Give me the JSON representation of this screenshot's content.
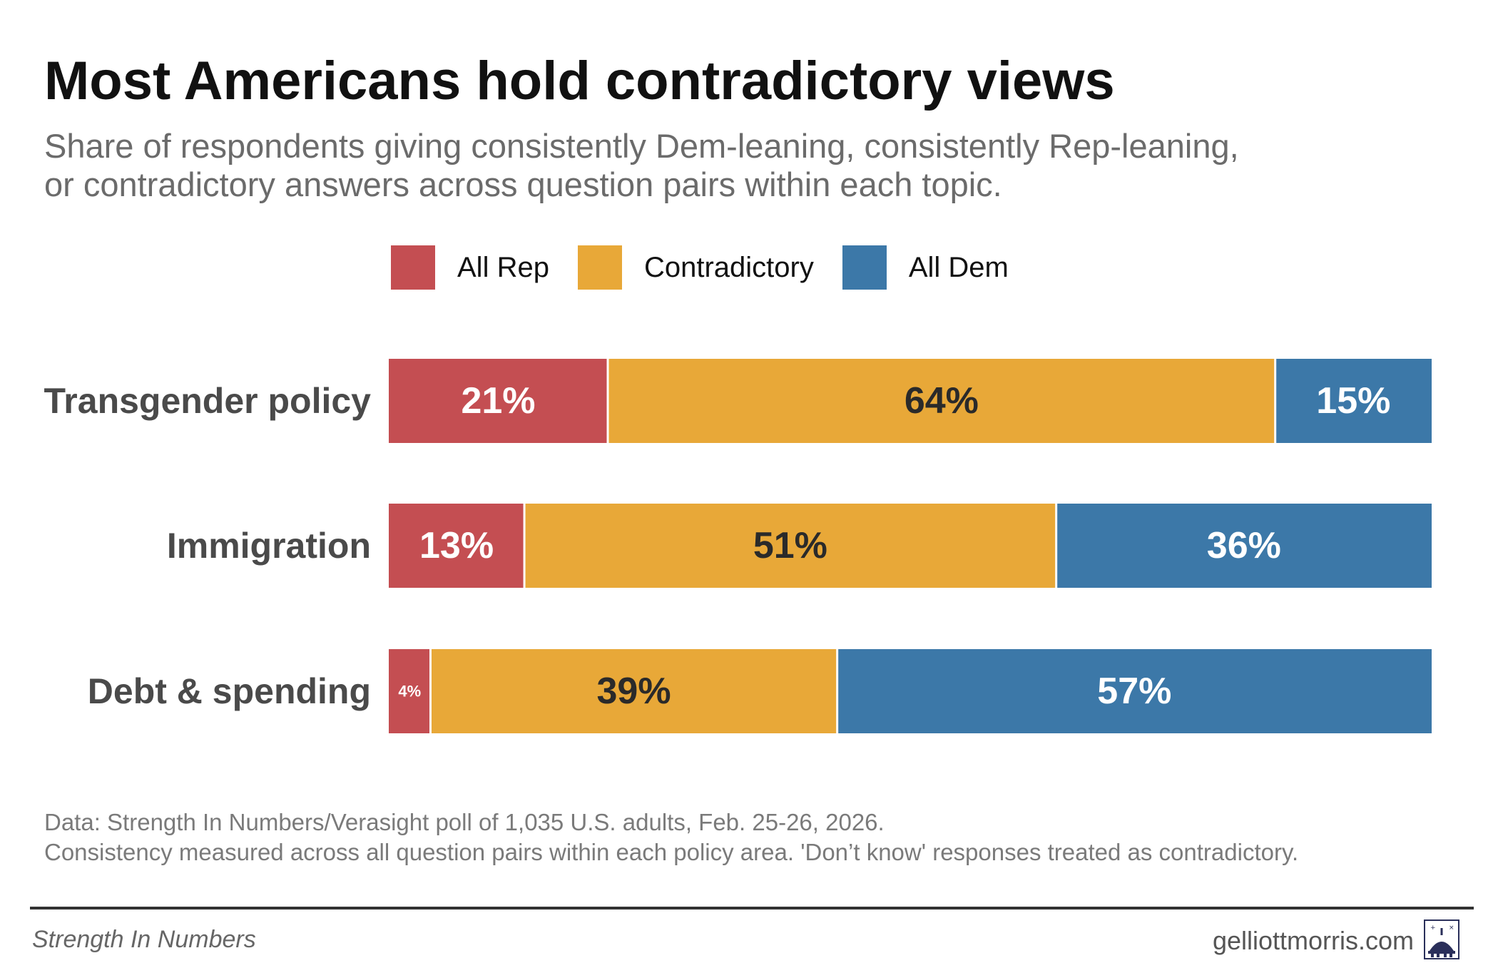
{
  "title": "Most Americans hold contradictory views",
  "subtitle": {
    "line1": "Share of respondents giving consistently Dem-leaning, consistently Rep-leaning,",
    "line2": "or contradictory answers across question pairs within each topic."
  },
  "chart_data": {
    "type": "bar",
    "orientation": "horizontal",
    "stacked": true,
    "categories": [
      "Transgender policy",
      "Immigration",
      "Debt & spending"
    ],
    "series": [
      {
        "name": "All Rep",
        "values": [
          21,
          13,
          4
        ],
        "color": "#c44e52",
        "label_color": "#ffffff"
      },
      {
        "name": "Contradictory",
        "values": [
          64,
          51,
          39
        ],
        "color": "#e8a838",
        "label_color": "#2a2a2a"
      },
      {
        "name": "All Dem",
        "values": [
          15,
          36,
          57
        ],
        "color": "#3c78a8",
        "label_color": "#ffffff"
      }
    ],
    "value_suffix": "%",
    "xlim": [
      0,
      100
    ],
    "legend": "top"
  },
  "notes": {
    "line1": "Data: Strength In Numbers/Verasight poll of 1,035 U.S. adults, Feb. 25-26, 2026.",
    "line2": "Consistency measured across all question pairs within each policy area. 'Don’t know' responses treated as contradictory."
  },
  "footer": {
    "publication": "Strength In Numbers",
    "website": "gelliottmorris.com",
    "logo_icon": "capitol-dome-icon"
  }
}
